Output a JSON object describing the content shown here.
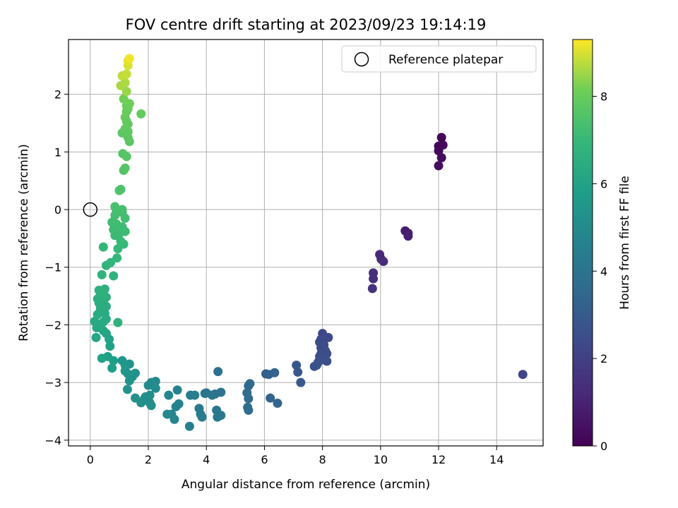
{
  "chart_data": {
    "type": "scatter",
    "title": "FOV centre drift starting at 2023/09/23 19:14:19",
    "xlabel": "Angular distance from reference (arcmin)",
    "ylabel": "Rotation from reference (arcmin)",
    "xlim": [
      -0.75,
      15.6
    ],
    "ylim": [
      -4.1,
      2.95
    ],
    "xticks": [
      0,
      2,
      4,
      6,
      8,
      10,
      12,
      14
    ],
    "yticks": [
      -4,
      -3,
      -2,
      -1,
      0,
      1,
      2
    ],
    "grid": true,
    "legend": {
      "position": "top-right",
      "entries": [
        "Reference platepar"
      ]
    },
    "reference_point": {
      "x": 0,
      "y": 0
    },
    "colorbar": {
      "label": "Hours from first FF file",
      "colormap": "viridis",
      "range": [
        0,
        9.3
      ],
      "ticks": [
        0,
        2,
        4,
        6,
        8
      ]
    },
    "points": [
      {
        "x": 12.1,
        "y": 1.25,
        "h": 0.1
      },
      {
        "x": 12.0,
        "y": 1.1,
        "h": 0.15
      },
      {
        "x": 12.15,
        "y": 1.12,
        "h": 0.2
      },
      {
        "x": 12.0,
        "y": 1.02,
        "h": 0.25
      },
      {
        "x": 12.1,
        "y": 0.9,
        "h": 0.3
      },
      {
        "x": 12.0,
        "y": 0.76,
        "h": 0.35
      },
      {
        "x": 10.85,
        "y": -0.37,
        "h": 0.8
      },
      {
        "x": 10.95,
        "y": -0.41,
        "h": 0.85
      },
      {
        "x": 10.95,
        "y": -0.46,
        "h": 0.9
      },
      {
        "x": 9.97,
        "y": -0.78,
        "h": 1.2
      },
      {
        "x": 10.02,
        "y": -0.86,
        "h": 1.25
      },
      {
        "x": 10.1,
        "y": -0.9,
        "h": 1.3
      },
      {
        "x": 9.75,
        "y": -1.1,
        "h": 1.4
      },
      {
        "x": 9.75,
        "y": -1.2,
        "h": 1.45
      },
      {
        "x": 9.72,
        "y": -1.37,
        "h": 1.5
      },
      {
        "x": 14.9,
        "y": -2.86,
        "h": 2.2
      },
      {
        "x": 8.0,
        "y": -2.15,
        "h": 2.3
      },
      {
        "x": 8.2,
        "y": -2.22,
        "h": 2.32
      },
      {
        "x": 7.95,
        "y": -2.25,
        "h": 2.35
      },
      {
        "x": 7.9,
        "y": -2.3,
        "h": 2.38
      },
      {
        "x": 8.05,
        "y": -2.35,
        "h": 2.4
      },
      {
        "x": 7.95,
        "y": -2.4,
        "h": 2.42
      },
      {
        "x": 8.1,
        "y": -2.45,
        "h": 2.45
      },
      {
        "x": 7.95,
        "y": -2.5,
        "h": 2.48
      },
      {
        "x": 8.15,
        "y": -2.5,
        "h": 2.5
      },
      {
        "x": 7.9,
        "y": -2.55,
        "h": 2.52
      },
      {
        "x": 8.0,
        "y": -2.6,
        "h": 2.55
      },
      {
        "x": 8.15,
        "y": -2.63,
        "h": 2.58
      },
      {
        "x": 7.85,
        "y": -2.65,
        "h": 2.6
      },
      {
        "x": 7.8,
        "y": -2.7,
        "h": 2.62
      },
      {
        "x": 7.72,
        "y": -2.72,
        "h": 2.65
      },
      {
        "x": 7.1,
        "y": -2.7,
        "h": 2.85
      },
      {
        "x": 7.15,
        "y": -2.82,
        "h": 2.9
      },
      {
        "x": 7.25,
        "y": -3.0,
        "h": 2.95
      },
      {
        "x": 6.05,
        "y": -2.85,
        "h": 3.2
      },
      {
        "x": 6.15,
        "y": -2.86,
        "h": 3.25
      },
      {
        "x": 6.35,
        "y": -2.83,
        "h": 3.28
      },
      {
        "x": 6.2,
        "y": -3.27,
        "h": 3.35
      },
      {
        "x": 6.45,
        "y": -3.36,
        "h": 3.4
      },
      {
        "x": 5.5,
        "y": -3.02,
        "h": 3.6
      },
      {
        "x": 5.45,
        "y": -3.06,
        "h": 3.62
      },
      {
        "x": 5.4,
        "y": -3.18,
        "h": 3.65
      },
      {
        "x": 5.45,
        "y": -3.28,
        "h": 3.68
      },
      {
        "x": 5.42,
        "y": -3.43,
        "h": 3.7
      },
      {
        "x": 5.45,
        "y": -3.48,
        "h": 3.72
      },
      {
        "x": 4.4,
        "y": -2.81,
        "h": 3.9
      },
      {
        "x": 4.5,
        "y": -3.17,
        "h": 3.95
      },
      {
        "x": 4.3,
        "y": -3.2,
        "h": 4.0
      },
      {
        "x": 4.2,
        "y": -3.22,
        "h": 4.05
      },
      {
        "x": 4.0,
        "y": -3.18,
        "h": 4.1
      },
      {
        "x": 3.95,
        "y": -3.19,
        "h": 4.12
      },
      {
        "x": 4.35,
        "y": -3.48,
        "h": 4.15
      },
      {
        "x": 4.5,
        "y": -3.57,
        "h": 4.18
      },
      {
        "x": 4.38,
        "y": -3.6,
        "h": 4.2
      },
      {
        "x": 3.75,
        "y": -3.45,
        "h": 4.3
      },
      {
        "x": 3.8,
        "y": -3.55,
        "h": 4.33
      },
      {
        "x": 3.85,
        "y": -3.6,
        "h": 4.36
      },
      {
        "x": 3.45,
        "y": -3.22,
        "h": 4.4
      },
      {
        "x": 3.6,
        "y": -3.22,
        "h": 4.45
      },
      {
        "x": 3.42,
        "y": -3.76,
        "h": 4.5
      },
      {
        "x": 3.0,
        "y": -3.13,
        "h": 4.6
      },
      {
        "x": 3.05,
        "y": -3.37,
        "h": 4.65
      },
      {
        "x": 2.95,
        "y": -3.42,
        "h": 4.7
      },
      {
        "x": 2.8,
        "y": -3.55,
        "h": 4.75
      },
      {
        "x": 2.9,
        "y": -3.64,
        "h": 4.8
      },
      {
        "x": 2.7,
        "y": -3.22,
        "h": 4.85
      },
      {
        "x": 2.65,
        "y": -3.55,
        "h": 4.9
      },
      {
        "x": 2.25,
        "y": -2.98,
        "h": 5.0
      },
      {
        "x": 2.1,
        "y": -3.0,
        "h": 5.02
      },
      {
        "x": 2.0,
        "y": -3.05,
        "h": 5.04
      },
      {
        "x": 2.25,
        "y": -3.1,
        "h": 5.06
      },
      {
        "x": 2.05,
        "y": -3.22,
        "h": 5.08
      },
      {
        "x": 2.0,
        "y": -3.3,
        "h": 5.1
      },
      {
        "x": 2.05,
        "y": -3.35,
        "h": 5.12
      },
      {
        "x": 2.1,
        "y": -3.4,
        "h": 5.14
      },
      {
        "x": 1.85,
        "y": -3.3,
        "h": 5.16
      },
      {
        "x": 1.9,
        "y": -3.25,
        "h": 5.18
      },
      {
        "x": 1.75,
        "y": -3.35,
        "h": 5.2
      },
      {
        "x": 1.55,
        "y": -3.27,
        "h": 5.22
      },
      {
        "x": 1.55,
        "y": -2.84,
        "h": 5.3
      },
      {
        "x": 1.45,
        "y": -2.9,
        "h": 5.32
      },
      {
        "x": 1.35,
        "y": -2.68,
        "h": 5.34
      },
      {
        "x": 1.35,
        "y": -2.97,
        "h": 5.36
      },
      {
        "x": 1.28,
        "y": -3.12,
        "h": 5.38
      },
      {
        "x": 1.3,
        "y": -2.85,
        "h": 5.4
      },
      {
        "x": 1.2,
        "y": -2.8,
        "h": 5.45
      },
      {
        "x": 1.1,
        "y": -2.62,
        "h": 5.5
      },
      {
        "x": 1.2,
        "y": -2.7,
        "h": 5.55
      },
      {
        "x": 0.75,
        "y": -2.75,
        "h": 5.8
      },
      {
        "x": 0.8,
        "y": -2.62,
        "h": 5.85
      },
      {
        "x": 0.6,
        "y": -2.55,
        "h": 5.9
      },
      {
        "x": 0.68,
        "y": -2.37,
        "h": 5.95
      },
      {
        "x": 0.4,
        "y": -2.58,
        "h": 6.0
      },
      {
        "x": 0.65,
        "y": -2.25,
        "h": 6.05
      },
      {
        "x": 0.55,
        "y": -2.15,
        "h": 6.1
      },
      {
        "x": 0.45,
        "y": -2.1,
        "h": 6.15
      },
      {
        "x": 0.2,
        "y": -2.22,
        "h": 6.2
      },
      {
        "x": 0.22,
        "y": -2.05,
        "h": 6.25
      },
      {
        "x": 0.35,
        "y": -2.0,
        "h": 6.3
      },
      {
        "x": 0.15,
        "y": -1.94,
        "h": 6.32
      },
      {
        "x": 0.45,
        "y": -1.95,
        "h": 6.35
      },
      {
        "x": 0.55,
        "y": -1.9,
        "h": 6.38
      },
      {
        "x": 0.25,
        "y": -1.82,
        "h": 6.4
      },
      {
        "x": 0.5,
        "y": -1.8,
        "h": 6.42
      },
      {
        "x": 0.35,
        "y": -1.72,
        "h": 6.45
      },
      {
        "x": 0.55,
        "y": -1.68,
        "h": 6.48
      },
      {
        "x": 0.3,
        "y": -1.62,
        "h": 6.5
      },
      {
        "x": 0.45,
        "y": -1.6,
        "h": 6.52
      },
      {
        "x": 0.25,
        "y": -1.55,
        "h": 6.55
      },
      {
        "x": 0.55,
        "y": -1.52,
        "h": 6.58
      },
      {
        "x": 0.35,
        "y": -1.47,
        "h": 6.6
      },
      {
        "x": 0.3,
        "y": -1.4,
        "h": 6.62
      },
      {
        "x": 0.5,
        "y": -1.38,
        "h": 6.65
      },
      {
        "x": 0.95,
        "y": -1.96,
        "h": 6.68
      },
      {
        "x": 0.8,
        "y": -1.15,
        "h": 6.7
      },
      {
        "x": 0.4,
        "y": -1.13,
        "h": 6.75
      },
      {
        "x": 0.55,
        "y": -0.97,
        "h": 6.8
      },
      {
        "x": 0.7,
        "y": -0.92,
        "h": 6.85
      },
      {
        "x": 0.45,
        "y": -0.65,
        "h": 6.9
      },
      {
        "x": 0.92,
        "y": -0.84,
        "h": 6.95
      },
      {
        "x": 1.15,
        "y": -0.6,
        "h": 7.0
      },
      {
        "x": 0.95,
        "y": -0.68,
        "h": 7.02
      },
      {
        "x": 1.05,
        "y": -0.55,
        "h": 7.05
      },
      {
        "x": 0.85,
        "y": -0.45,
        "h": 7.08
      },
      {
        "x": 1.0,
        "y": -0.42,
        "h": 7.1
      },
      {
        "x": 1.2,
        "y": -0.38,
        "h": 7.12
      },
      {
        "x": 0.8,
        "y": -0.35,
        "h": 7.15
      },
      {
        "x": 1.1,
        "y": -0.3,
        "h": 7.18
      },
      {
        "x": 0.9,
        "y": -0.25,
        "h": 7.2
      },
      {
        "x": 0.75,
        "y": -0.22,
        "h": 7.22
      },
      {
        "x": 1.2,
        "y": -0.15,
        "h": 7.25
      },
      {
        "x": 0.85,
        "y": -0.1,
        "h": 7.28
      },
      {
        "x": 1.1,
        "y": -0.05,
        "h": 7.3
      },
      {
        "x": 0.9,
        "y": -0.02,
        "h": 7.32
      },
      {
        "x": 1.1,
        "y": 0.0,
        "h": 7.35
      },
      {
        "x": 0.85,
        "y": 0.05,
        "h": 7.38
      },
      {
        "x": 1.05,
        "y": 0.35,
        "h": 7.5
      },
      {
        "x": 1.0,
        "y": 0.33,
        "h": 7.52
      },
      {
        "x": 1.15,
        "y": 0.68,
        "h": 7.6
      },
      {
        "x": 1.2,
        "y": 0.72,
        "h": 7.62
      },
      {
        "x": 1.12,
        "y": 0.97,
        "h": 7.65
      },
      {
        "x": 1.25,
        "y": 0.92,
        "h": 7.68
      },
      {
        "x": 1.35,
        "y": 1.18,
        "h": 7.75
      },
      {
        "x": 1.3,
        "y": 1.25,
        "h": 7.78
      },
      {
        "x": 1.1,
        "y": 1.33,
        "h": 7.8
      },
      {
        "x": 1.3,
        "y": 1.35,
        "h": 7.82
      },
      {
        "x": 1.2,
        "y": 1.4,
        "h": 7.85
      },
      {
        "x": 1.3,
        "y": 1.48,
        "h": 7.88
      },
      {
        "x": 1.25,
        "y": 1.53,
        "h": 7.9
      },
      {
        "x": 1.75,
        "y": 1.66,
        "h": 7.92
      },
      {
        "x": 1.2,
        "y": 1.6,
        "h": 7.95
      },
      {
        "x": 1.25,
        "y": 1.7,
        "h": 7.98
      },
      {
        "x": 1.3,
        "y": 1.75,
        "h": 8.0
      },
      {
        "x": 1.25,
        "y": 1.8,
        "h": 8.05
      },
      {
        "x": 1.35,
        "y": 1.84,
        "h": 8.1
      },
      {
        "x": 1.15,
        "y": 1.92,
        "h": 8.15
      },
      {
        "x": 1.25,
        "y": 2.05,
        "h": 8.5
      },
      {
        "x": 1.05,
        "y": 2.15,
        "h": 8.6
      },
      {
        "x": 1.2,
        "y": 2.2,
        "h": 8.65
      },
      {
        "x": 1.1,
        "y": 2.32,
        "h": 8.8
      },
      {
        "x": 1.25,
        "y": 2.35,
        "h": 8.85
      },
      {
        "x": 1.3,
        "y": 2.5,
        "h": 9.0
      },
      {
        "x": 1.3,
        "y": 2.58,
        "h": 9.1
      },
      {
        "x": 1.35,
        "y": 2.62,
        "h": 9.2
      }
    ]
  }
}
